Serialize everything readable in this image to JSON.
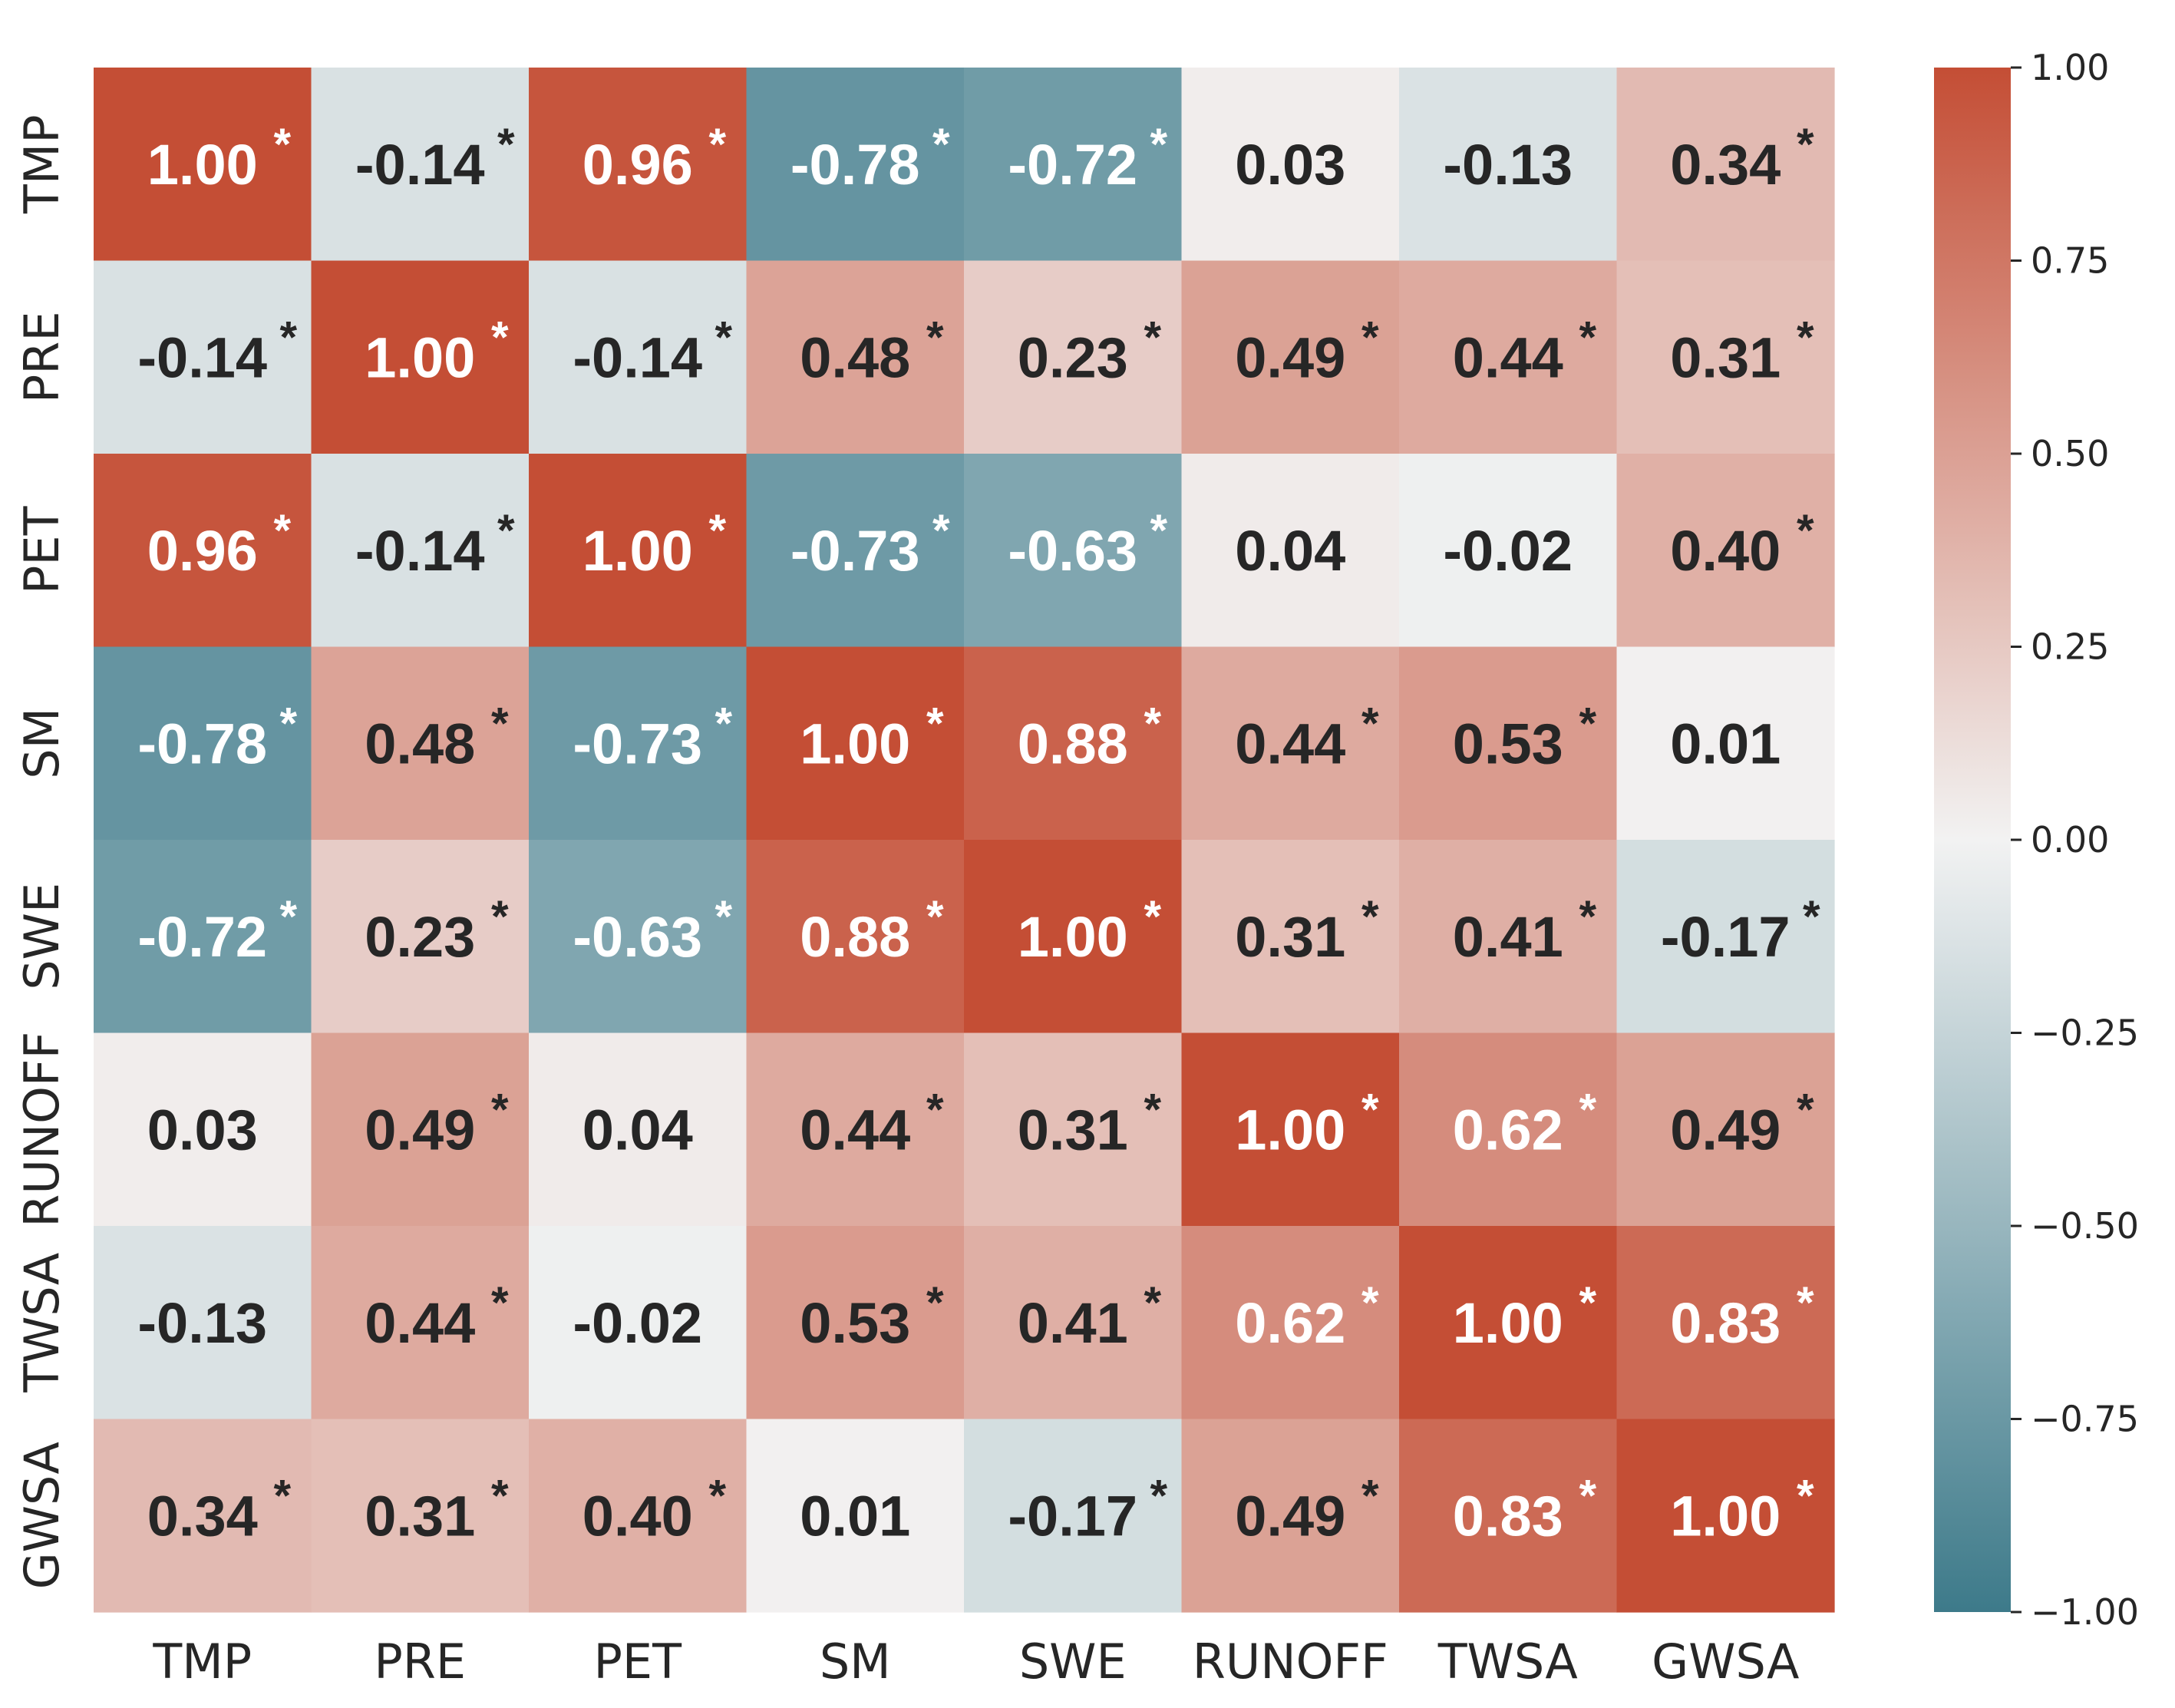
{
  "chart_data": {
    "type": "heatmap",
    "title": "",
    "xlabel": "",
    "ylabel": "",
    "row_labels": [
      "TMP",
      "PRE",
      "PET",
      "SM",
      "SWE",
      "RUNOFF",
      "TWSA",
      "GWSA"
    ],
    "col_labels": [
      "TMP",
      "PRE",
      "PET",
      "SM",
      "SWE",
      "RUNOFF",
      "TWSA",
      "GWSA"
    ],
    "values": [
      [
        1.0,
        -0.14,
        0.96,
        -0.78,
        -0.72,
        0.03,
        -0.13,
        0.34
      ],
      [
        -0.14,
        1.0,
        -0.14,
        0.48,
        0.23,
        0.49,
        0.44,
        0.31
      ],
      [
        0.96,
        -0.14,
        1.0,
        -0.73,
        -0.63,
        0.04,
        -0.02,
        0.4
      ],
      [
        -0.78,
        0.48,
        -0.73,
        1.0,
        0.88,
        0.44,
        0.53,
        0.01
      ],
      [
        -0.72,
        0.23,
        -0.63,
        0.88,
        1.0,
        0.31,
        0.41,
        -0.17
      ],
      [
        0.03,
        0.49,
        0.04,
        0.44,
        0.31,
        1.0,
        0.62,
        0.49
      ],
      [
        -0.13,
        0.44,
        -0.02,
        0.53,
        0.41,
        0.62,
        1.0,
        0.83
      ],
      [
        0.34,
        0.31,
        0.4,
        0.01,
        -0.17,
        0.49,
        0.83,
        1.0
      ]
    ],
    "significant": [
      [
        true,
        true,
        true,
        true,
        true,
        false,
        false,
        true
      ],
      [
        true,
        true,
        true,
        true,
        true,
        true,
        true,
        true
      ],
      [
        true,
        true,
        true,
        true,
        true,
        false,
        false,
        true
      ],
      [
        true,
        true,
        true,
        true,
        true,
        true,
        true,
        false
      ],
      [
        true,
        true,
        true,
        true,
        true,
        true,
        true,
        true
      ],
      [
        false,
        true,
        false,
        true,
        true,
        true,
        true,
        true
      ],
      [
        false,
        true,
        false,
        true,
        true,
        true,
        true,
        true
      ],
      [
        true,
        true,
        true,
        false,
        true,
        true,
        true,
        true
      ]
    ],
    "significance_marker": "*",
    "vmin": -1.0,
    "vmax": 1.0,
    "colorbar": {
      "ticks": [
        1.0,
        0.75,
        0.5,
        0.25,
        0.0,
        -0.25,
        -0.5,
        -0.75,
        -1.0
      ],
      "tick_labels": [
        "1.00",
        "0.75",
        "0.50",
        "0.25",
        "0.00",
        "−0.25",
        "−0.50",
        "−0.75",
        "−1.00"
      ]
    },
    "colormap": {
      "negative_end": "#3d7a8a",
      "center": "#f2f2f2",
      "positive_end": "#c44e35"
    },
    "text_colors": {
      "light": "#ffffff",
      "dark": "#262626"
    },
    "grid": false,
    "legend": "colorbar-right"
  }
}
